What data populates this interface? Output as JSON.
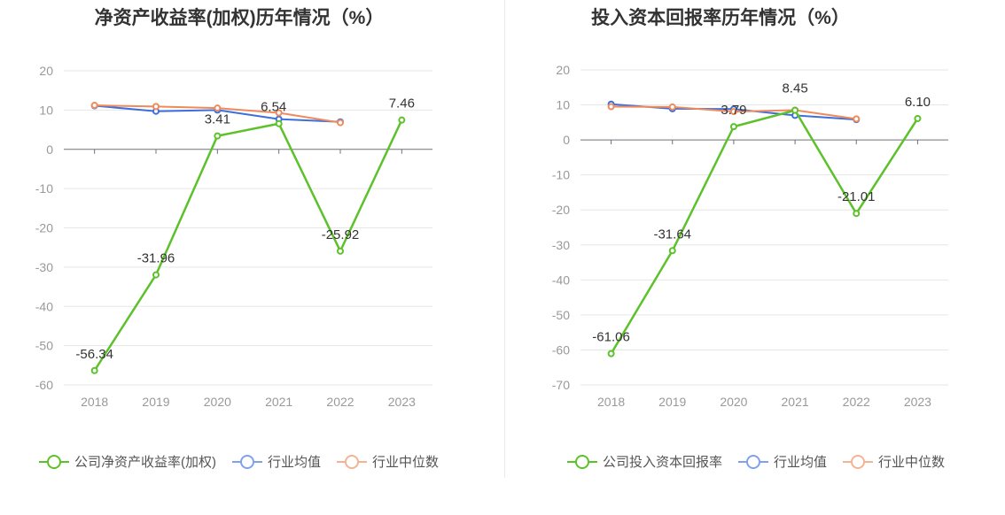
{
  "charts": [
    {
      "id": "left",
      "title": "净资产收益率(加权)历年情况（%）",
      "legend": [
        "公司净资产收益率(加权)",
        "行业均值",
        "行业中位数"
      ],
      "chart_data": {
        "type": "line",
        "title": "净资产收益率(加权)历年情况（%）",
        "categories": [
          "2018",
          "2019",
          "2020",
          "2021",
          "2022",
          "2023"
        ],
        "ylim": [
          -60,
          20
        ],
        "yticks": [
          20,
          10,
          0,
          -10,
          -20,
          -30,
          -40,
          -50,
          -60
        ],
        "grid": true,
        "legend_position": "bottom",
        "series": [
          {
            "name": "公司净资产收益率(加权)",
            "color": "#5cc12a",
            "values": [
              -56.34,
              -31.96,
              3.41,
              6.54,
              -25.92,
              7.46
            ],
            "labels": [
              "-56.34",
              "-31.96",
              "3.41",
              "6.54",
              "-25.92",
              "7.46"
            ]
          },
          {
            "name": "行业均值",
            "color": "#3d6fdc",
            "values": [
              11.1,
              9.7,
              10.0,
              7.7,
              7.0,
              null
            ]
          },
          {
            "name": "行业中位数",
            "color": "#ee8a5c",
            "values": [
              11.2,
              10.9,
              10.5,
              9.3,
              6.8,
              null
            ]
          }
        ]
      }
    },
    {
      "id": "right",
      "title": "投入资本回报率历年情况（%）",
      "legend": [
        "公司投入资本回报率",
        "行业均值",
        "行业中位数"
      ],
      "chart_data": {
        "type": "line",
        "title": "投入资本回报率历年情况（%）",
        "categories": [
          "2018",
          "2019",
          "2020",
          "2021",
          "2022",
          "2023"
        ],
        "ylim": [
          -70,
          20
        ],
        "yticks": [
          20,
          10,
          0,
          -10,
          -20,
          -30,
          -40,
          -50,
          -60,
          -70
        ],
        "grid": true,
        "legend_position": "bottom",
        "series": [
          {
            "name": "公司投入资本回报率",
            "color": "#5cc12a",
            "values": [
              -61.06,
              -31.64,
              3.79,
              8.45,
              -21.01,
              6.1
            ],
            "labels": [
              "-61.06",
              "-31.64",
              "3.79",
              "8.45",
              "-21.01",
              "6.10"
            ]
          },
          {
            "name": "行业均值",
            "color": "#3d6fdc",
            "values": [
              10.2,
              8.9,
              8.8,
              7.0,
              5.8,
              null
            ]
          },
          {
            "name": "行业中位数",
            "color": "#ee8a5c",
            "values": [
              9.5,
              9.4,
              8.1,
              8.5,
              6.0,
              null
            ]
          }
        ]
      }
    }
  ]
}
